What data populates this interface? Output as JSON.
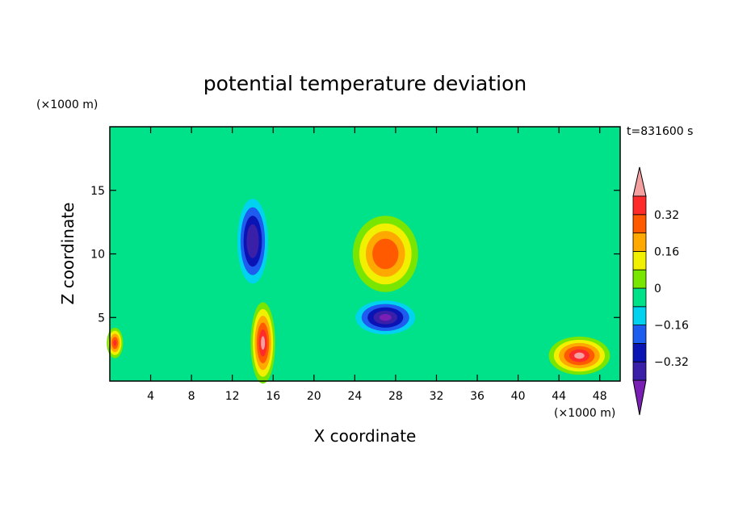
{
  "chart_data": {
    "type": "heatmap",
    "title": "potential temperature deviation",
    "xlabel": "X coordinate",
    "ylabel": "Z coordinate",
    "x_unit": "(×1000 m)",
    "y_unit": "(×1000 m)",
    "time_label": "t=831600 s",
    "xlim": [
      0,
      50
    ],
    "ylim": [
      0,
      20
    ],
    "x_ticks": [
      4,
      8,
      12,
      16,
      20,
      24,
      28,
      32,
      36,
      40,
      44,
      48
    ],
    "y_ticks": [
      5,
      10,
      15
    ],
    "colorbar": {
      "levels": [
        -0.4,
        -0.32,
        -0.24,
        -0.16,
        -0.08,
        0,
        0.08,
        0.16,
        0.24,
        0.32,
        0.4
      ],
      "tick_values": [
        0.32,
        0.16,
        0,
        -0.16,
        -0.32
      ],
      "tick_labels": [
        "0.32",
        "0.16",
        "0",
        "−0.16",
        "−0.32"
      ],
      "colors": [
        "#7a1fb4",
        "#3a1fa8",
        "#0a14b4",
        "#1e5cf0",
        "#00d2f0",
        "#00e28a",
        "#78e600",
        "#f0f000",
        "#ffa800",
        "#ff5a00",
        "#ff2a2a",
        "#f5a0a0"
      ],
      "extend": "both"
    },
    "features": [
      {
        "x": 14,
        "z": 11,
        "value": -0.4,
        "rx": 1.8,
        "rz": 4.0
      },
      {
        "x": 27,
        "z": 10,
        "value": 0.3,
        "rx": 3.2,
        "rz": 3.0
      },
      {
        "x": 15,
        "z": 3,
        "value": 0.42,
        "rx": 1.2,
        "rz": 3.2
      },
      {
        "x": 27,
        "z": 5,
        "value": -0.42,
        "rx": 3.5,
        "rz": 1.6
      },
      {
        "x": 46,
        "z": 2,
        "value": 0.42,
        "rx": 3.0,
        "rz": 1.5
      },
      {
        "x": 0.5,
        "z": 3,
        "value": 0.32,
        "rx": 0.8,
        "rz": 1.2
      }
    ]
  }
}
